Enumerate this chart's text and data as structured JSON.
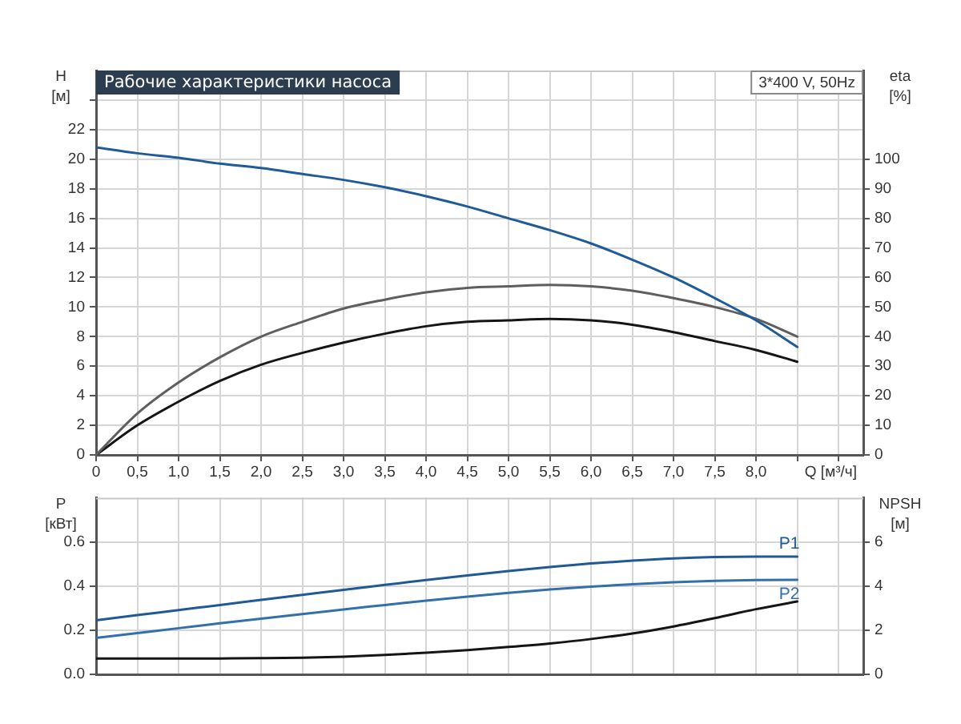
{
  "chart_data": [
    {
      "type": "line",
      "title": "Рабочие характеристики насоса",
      "subtitle": "3*400 V, 50Hz",
      "xlabel": "Q [м³/ч]",
      "ylabel": "H [м]",
      "y2label": "eta [%]",
      "x": [
        0,
        0.5,
        1,
        1.5,
        2,
        2.5,
        3,
        3.5,
        4,
        4.5,
        5,
        5.5,
        6,
        6.5,
        7,
        7.5,
        8,
        8.5
      ],
      "series": [
        {
          "color": "#1f5b98",
          "values": [
            20.8,
            20.4,
            20.1,
            19.7,
            19.4,
            19.0,
            18.6,
            18.1,
            17.5,
            16.8,
            16.0,
            15.2,
            14.3,
            13.2,
            12.0,
            10.6,
            9.1,
            7.3
          ]
        },
        {
          "color": "#5e5e5e",
          "axis": "y2",
          "values": [
            0,
            14,
            24.5,
            33,
            40,
            45,
            49.5,
            52.5,
            55,
            56.5,
            57,
            57.5,
            57,
            55.5,
            53,
            50,
            46,
            40
          ]
        },
        {
          "color": "#151515",
          "axis": "y2",
          "values": [
            0,
            10,
            18,
            25,
            30.5,
            34.5,
            38,
            41,
            43.5,
            45,
            45.5,
            46,
            45.5,
            44,
            41.5,
            38.5,
            35.5,
            31.5
          ]
        }
      ],
      "xlim": [
        0,
        9.3
      ],
      "xticks": [
        0,
        {
          "value": 0.5,
          "label": "0,5"
        },
        {
          "value": 1,
          "label": "1,0"
        },
        {
          "value": 1.5,
          "label": "1,5"
        },
        {
          "value": 2,
          "label": "2,0"
        },
        {
          "value": 2.5,
          "label": "2,5"
        },
        {
          "value": 3,
          "label": "3,0"
        },
        {
          "value": 3.5,
          "label": "3,5"
        },
        {
          "value": 4,
          "label": "4,0"
        },
        {
          "value": 4.5,
          "label": "4,5"
        },
        {
          "value": 5,
          "label": "5,0"
        },
        {
          "value": 5.5,
          "label": "5,5"
        },
        {
          "value": 6,
          "label": "6,0"
        },
        {
          "value": 6.5,
          "label": "6,5"
        },
        {
          "value": 7,
          "label": "7,0"
        },
        {
          "value": 7.5,
          "label": "7,5"
        },
        {
          "value": 8,
          "label": "8,0"
        },
        {
          "value": 8.5,
          "label": null
        },
        {
          "value": 9,
          "label": null
        }
      ],
      "ylim": [
        0,
        26
      ],
      "yticks": [
        0,
        2,
        4,
        6,
        8,
        10,
        12,
        14,
        16,
        18,
        20,
        22,
        {
          "value": 24,
          "label": null
        }
      ],
      "y2lim": [
        0,
        130
      ],
      "y2ticks": [
        0,
        10,
        20,
        30,
        40,
        50,
        60,
        70,
        80,
        90,
        100
      ],
      "grid": true,
      "marker": "none"
    },
    {
      "type": "line",
      "ylabel": "P [кВт]",
      "y2label": "NPSH [м]",
      "x": [
        0,
        0.5,
        1,
        1.5,
        2,
        2.5,
        3,
        3.5,
        4,
        4.5,
        5,
        5.5,
        6,
        6.5,
        7,
        7.5,
        8,
        8.5
      ],
      "series": [
        {
          "name": "P1",
          "color": "#1f5a96",
          "values": [
            0.245,
            0.268,
            0.291,
            0.314,
            0.337,
            0.36,
            0.383,
            0.405,
            0.427,
            0.448,
            0.468,
            0.486,
            0.502,
            0.515,
            0.525,
            0.531,
            0.533,
            0.533
          ]
        },
        {
          "name": "P2",
          "color": "#336fab",
          "values": [
            0.165,
            0.187,
            0.209,
            0.231,
            0.252,
            0.273,
            0.294,
            0.314,
            0.334,
            0.352,
            0.369,
            0.384,
            0.397,
            0.408,
            0.417,
            0.423,
            0.427,
            0.428
          ]
        },
        {
          "color": "#151515",
          "axis": "y2",
          "values": [
            0.72,
            0.72,
            0.72,
            0.72,
            0.73,
            0.75,
            0.8,
            0.88,
            0.98,
            1.1,
            1.24,
            1.4,
            1.6,
            1.85,
            2.17,
            2.55,
            2.95,
            3.3
          ]
        }
      ],
      "xlim": [
        0,
        9.3
      ],
      "xticks": [
        0,
        0.5,
        1,
        1.5,
        2,
        2.5,
        3,
        3.5,
        4,
        4.5,
        5,
        5.5,
        6,
        6.5,
        7,
        7.5,
        8,
        8.5,
        9
      ],
      "ylim": [
        0,
        0.8
      ],
      "yticks": [
        {
          "value": 0,
          "label": "0.0"
        },
        0.2,
        0.4,
        0.6
      ],
      "y2lim": [
        0,
        8
      ],
      "y2ticks": [
        0,
        2,
        4,
        6
      ],
      "grid": true,
      "marker": "none",
      "tick_labels": "y"
    }
  ]
}
